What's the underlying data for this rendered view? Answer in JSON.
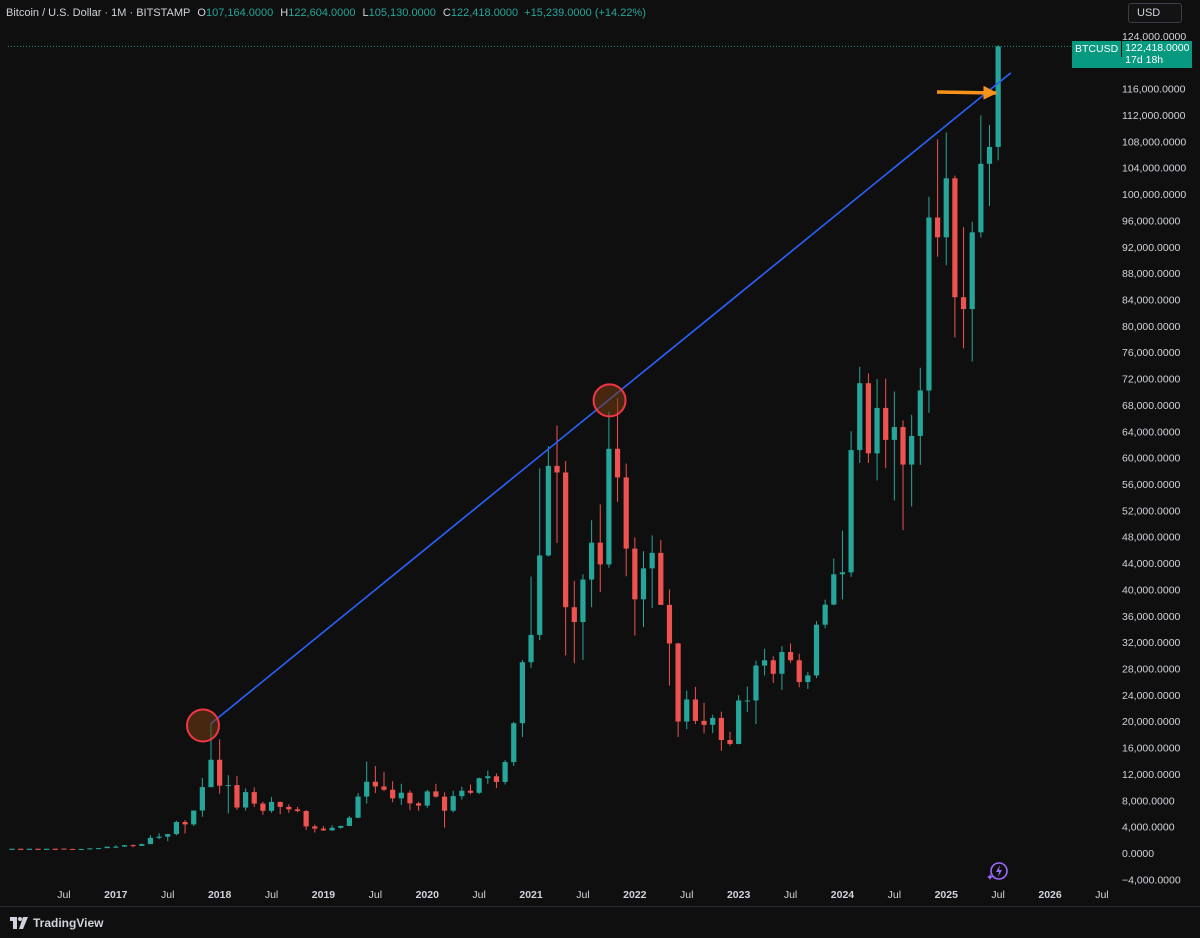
{
  "header": {
    "symbol": "Bitcoin / U.S. Dollar · 1M · BITSTAMP",
    "o_label": "O",
    "o_value": "107,164.0000",
    "h_label": "H",
    "h_value": "122,604.0000",
    "l_label": "L",
    "l_value": "105,130.0000",
    "c_label": "C",
    "c_value": "122,418.0000",
    "change": "+15,239.0000 (+14.22%)"
  },
  "currency_button": "USD",
  "price_tag": {
    "symbol": "BTCUSD",
    "price": "122,418.0000",
    "countdown": "17d 18h"
  },
  "footer": {
    "brand": "TradingView"
  },
  "colors": {
    "up": "#26a69a",
    "down": "#ef5350",
    "trendline": "#2962ff",
    "arrow": "#f7931a",
    "circle": "#f23645"
  },
  "chart_data": {
    "type": "candlestick",
    "title": "Bitcoin / U.S. Dollar · 1M · BITSTAMP",
    "x_ticks": [
      "Jul",
      "2017",
      "Jul",
      "2018",
      "Jul",
      "2019",
      "Jul",
      "2020",
      "Jul",
      "2021",
      "Jul",
      "2022",
      "Jul",
      "2023",
      "Jul",
      "2024",
      "Jul",
      "2025",
      "Jul",
      "2026",
      "Jul"
    ],
    "y_ticks": [
      "124,000.0000",
      "120,000.0000",
      "116,000.0000",
      "112,000.0000",
      "108,000.0000",
      "104,000.0000",
      "100,000.0000",
      "96,000.0000",
      "92,000.0000",
      "88,000.0000",
      "84,000.0000",
      "80,000.0000",
      "76,000.0000",
      "72,000.0000",
      "68,000.0000",
      "64,000.0000",
      "60,000.0000",
      "56,000.0000",
      "52,000.0000",
      "48,000.0000",
      "44,000.0000",
      "40,000.0000",
      "36,000.0000",
      "32,000.0000",
      "28,000.0000",
      "24,000.0000",
      "20,000.0000",
      "16,000.0000",
      "12,000.0000",
      "8,000.0000",
      "4,000.0000",
      "0.0000",
      "−4,000.0000"
    ],
    "ylim": [
      -4500,
      126000
    ],
    "x_range_months": [
      "2016-03",
      "2026-09"
    ],
    "candles": [
      {
        "d": "2016-07",
        "o": 670,
        "h": 700,
        "l": 600,
        "c": 620
      },
      {
        "d": "2016-08",
        "o": 620,
        "h": 630,
        "l": 520,
        "c": 575
      },
      {
        "d": "2016-09",
        "o": 575,
        "h": 620,
        "l": 570,
        "c": 610
      },
      {
        "d": "2016-10",
        "o": 610,
        "h": 740,
        "l": 605,
        "c": 700
      },
      {
        "d": "2016-11",
        "o": 700,
        "h": 750,
        "l": 690,
        "c": 740
      },
      {
        "d": "2016-12",
        "o": 740,
        "h": 970,
        "l": 740,
        "c": 960
      },
      {
        "d": "2017-01",
        "o": 960,
        "h": 1150,
        "l": 750,
        "c": 970
      },
      {
        "d": "2017-02",
        "o": 970,
        "h": 1200,
        "l": 920,
        "c": 1190
      },
      {
        "d": "2017-03",
        "o": 1190,
        "h": 1300,
        "l": 890,
        "c": 1080
      },
      {
        "d": "2017-04",
        "o": 1080,
        "h": 1420,
        "l": 1080,
        "c": 1350
      },
      {
        "d": "2017-05",
        "o": 1350,
        "h": 2700,
        "l": 1350,
        "c": 2300
      },
      {
        "d": "2017-06",
        "o": 2300,
        "h": 3000,
        "l": 2100,
        "c": 2480
      },
      {
        "d": "2017-07",
        "o": 2480,
        "h": 2900,
        "l": 1800,
        "c": 2870
      },
      {
        "d": "2017-08",
        "o": 2870,
        "h": 4900,
        "l": 2700,
        "c": 4700
      },
      {
        "d": "2017-09",
        "o": 4700,
        "h": 5000,
        "l": 2970,
        "c": 4340
      },
      {
        "d": "2017-10",
        "o": 4340,
        "h": 6450,
        "l": 4100,
        "c": 6450
      },
      {
        "d": "2017-11",
        "o": 6450,
        "h": 11400,
        "l": 5500,
        "c": 10000
      },
      {
        "d": "2017-12",
        "o": 10000,
        "h": 19660,
        "l": 10000,
        "c": 14150
      },
      {
        "d": "2018-01",
        "o": 14150,
        "h": 17250,
        "l": 9000,
        "c": 10220
      },
      {
        "d": "2018-02",
        "o": 10220,
        "h": 11800,
        "l": 6000,
        "c": 10300
      },
      {
        "d": "2018-03",
        "o": 10300,
        "h": 11700,
        "l": 6550,
        "c": 6900
      },
      {
        "d": "2018-04",
        "o": 6900,
        "h": 9800,
        "l": 6450,
        "c": 9240
      },
      {
        "d": "2018-05",
        "o": 9240,
        "h": 9960,
        "l": 7000,
        "c": 7500
      },
      {
        "d": "2018-06",
        "o": 7500,
        "h": 7780,
        "l": 5800,
        "c": 6400
      },
      {
        "d": "2018-07",
        "o": 6400,
        "h": 8500,
        "l": 6100,
        "c": 7750
      },
      {
        "d": "2018-08",
        "o": 7750,
        "h": 7800,
        "l": 5900,
        "c": 7000
      },
      {
        "d": "2018-09",
        "o": 7000,
        "h": 7400,
        "l": 6100,
        "c": 6620
      },
      {
        "d": "2018-10",
        "o": 6620,
        "h": 7000,
        "l": 6200,
        "c": 6370
      },
      {
        "d": "2018-11",
        "o": 6370,
        "h": 6550,
        "l": 3500,
        "c": 4040
      },
      {
        "d": "2018-12",
        "o": 4040,
        "h": 4300,
        "l": 3100,
        "c": 3700
      },
      {
        "d": "2019-01",
        "o": 3700,
        "h": 4100,
        "l": 3350,
        "c": 3430
      },
      {
        "d": "2019-02",
        "o": 3430,
        "h": 4200,
        "l": 3380,
        "c": 3830
      },
      {
        "d": "2019-03",
        "o": 3830,
        "h": 4150,
        "l": 3700,
        "c": 4110
      },
      {
        "d": "2019-04",
        "o": 4110,
        "h": 5600,
        "l": 4100,
        "c": 5350
      },
      {
        "d": "2019-05",
        "o": 5350,
        "h": 9100,
        "l": 5300,
        "c": 8570
      },
      {
        "d": "2019-06",
        "o": 8570,
        "h": 13880,
        "l": 7500,
        "c": 10820
      },
      {
        "d": "2019-07",
        "o": 10820,
        "h": 13200,
        "l": 9100,
        "c": 10100
      },
      {
        "d": "2019-08",
        "o": 10100,
        "h": 12300,
        "l": 9400,
        "c": 9600
      },
      {
        "d": "2019-09",
        "o": 9600,
        "h": 10900,
        "l": 7700,
        "c": 8300
      },
      {
        "d": "2019-10",
        "o": 8300,
        "h": 10500,
        "l": 7300,
        "c": 9150
      },
      {
        "d": "2019-11",
        "o": 9150,
        "h": 9500,
        "l": 6500,
        "c": 7540
      },
      {
        "d": "2019-12",
        "o": 7540,
        "h": 7750,
        "l": 6400,
        "c": 7190
      },
      {
        "d": "2020-01",
        "o": 7190,
        "h": 9600,
        "l": 6850,
        "c": 9350
      },
      {
        "d": "2020-02",
        "o": 9350,
        "h": 10500,
        "l": 8400,
        "c": 8550
      },
      {
        "d": "2020-03",
        "o": 8550,
        "h": 9200,
        "l": 3850,
        "c": 6420
      },
      {
        "d": "2020-04",
        "o": 6420,
        "h": 9450,
        "l": 6150,
        "c": 8630
      },
      {
        "d": "2020-05",
        "o": 8630,
        "h": 10080,
        "l": 8100,
        "c": 9450
      },
      {
        "d": "2020-06",
        "o": 9450,
        "h": 10400,
        "l": 8900,
        "c": 9140
      },
      {
        "d": "2020-07",
        "o": 9140,
        "h": 11450,
        "l": 8950,
        "c": 11350
      },
      {
        "d": "2020-08",
        "o": 11350,
        "h": 12470,
        "l": 10500,
        "c": 11650
      },
      {
        "d": "2020-09",
        "o": 11650,
        "h": 12070,
        "l": 9850,
        "c": 10780
      },
      {
        "d": "2020-10",
        "o": 10780,
        "h": 14100,
        "l": 10400,
        "c": 13800
      },
      {
        "d": "2020-11",
        "o": 13800,
        "h": 19900,
        "l": 13200,
        "c": 19700
      },
      {
        "d": "2020-12",
        "o": 19700,
        "h": 29300,
        "l": 17600,
        "c": 28950
      },
      {
        "d": "2021-01",
        "o": 28950,
        "h": 41950,
        "l": 28100,
        "c": 33100
      },
      {
        "d": "2021-02",
        "o": 33100,
        "h": 58350,
        "l": 32300,
        "c": 45150
      },
      {
        "d": "2021-03",
        "o": 45150,
        "h": 61750,
        "l": 45000,
        "c": 58750
      },
      {
        "d": "2021-04",
        "o": 58750,
        "h": 64900,
        "l": 47050,
        "c": 57750
      },
      {
        "d": "2021-05",
        "o": 57750,
        "h": 59500,
        "l": 30000,
        "c": 37300
      },
      {
        "d": "2021-06",
        "o": 37300,
        "h": 41300,
        "l": 28800,
        "c": 35050
      },
      {
        "d": "2021-07",
        "o": 35050,
        "h": 42300,
        "l": 29300,
        "c": 41500
      },
      {
        "d": "2021-08",
        "o": 41500,
        "h": 50500,
        "l": 37300,
        "c": 47100
      },
      {
        "d": "2021-09",
        "o": 47100,
        "h": 52900,
        "l": 39600,
        "c": 43800
      },
      {
        "d": "2021-10",
        "o": 43800,
        "h": 67000,
        "l": 43300,
        "c": 61350
      },
      {
        "d": "2021-11",
        "o": 61350,
        "h": 69000,
        "l": 53300,
        "c": 57000
      },
      {
        "d": "2021-12",
        "o": 57000,
        "h": 59100,
        "l": 42000,
        "c": 46200
      },
      {
        "d": "2022-01",
        "o": 46200,
        "h": 47900,
        "l": 33000,
        "c": 38500
      },
      {
        "d": "2022-02",
        "o": 38500,
        "h": 45800,
        "l": 34300,
        "c": 43200
      },
      {
        "d": "2022-03",
        "o": 43200,
        "h": 48200,
        "l": 37200,
        "c": 45550
      },
      {
        "d": "2022-04",
        "o": 45550,
        "h": 47500,
        "l": 37700,
        "c": 37650
      },
      {
        "d": "2022-05",
        "o": 37650,
        "h": 40000,
        "l": 25400,
        "c": 31800
      },
      {
        "d": "2022-06",
        "o": 31800,
        "h": 31900,
        "l": 17600,
        "c": 19950
      },
      {
        "d": "2022-07",
        "o": 19950,
        "h": 24650,
        "l": 18800,
        "c": 23300
      },
      {
        "d": "2022-08",
        "o": 23300,
        "h": 25200,
        "l": 19550,
        "c": 20050
      },
      {
        "d": "2022-09",
        "o": 20050,
        "h": 22800,
        "l": 18150,
        "c": 19450
      },
      {
        "d": "2022-10",
        "o": 19450,
        "h": 21000,
        "l": 18200,
        "c": 20500
      },
      {
        "d": "2022-11",
        "o": 20500,
        "h": 21450,
        "l": 15500,
        "c": 17150
      },
      {
        "d": "2022-12",
        "o": 17150,
        "h": 18400,
        "l": 16300,
        "c": 16550
      },
      {
        "d": "2023-01",
        "o": 16550,
        "h": 23950,
        "l": 16500,
        "c": 23150
      },
      {
        "d": "2023-02",
        "o": 23150,
        "h": 25250,
        "l": 21400,
        "c": 23150
      },
      {
        "d": "2023-03",
        "o": 23150,
        "h": 29200,
        "l": 19550,
        "c": 28450
      },
      {
        "d": "2023-04",
        "o": 28450,
        "h": 31000,
        "l": 26950,
        "c": 29250
      },
      {
        "d": "2023-05",
        "o": 29250,
        "h": 29850,
        "l": 25800,
        "c": 27200
      },
      {
        "d": "2023-06",
        "o": 27200,
        "h": 31400,
        "l": 24750,
        "c": 30500
      },
      {
        "d": "2023-07",
        "o": 30500,
        "h": 31800,
        "l": 28850,
        "c": 29250
      },
      {
        "d": "2023-08",
        "o": 29250,
        "h": 30250,
        "l": 25150,
        "c": 25950
      },
      {
        "d": "2023-09",
        "o": 25950,
        "h": 27500,
        "l": 24900,
        "c": 26950
      },
      {
        "d": "2023-10",
        "o": 26950,
        "h": 35200,
        "l": 26550,
        "c": 34650
      },
      {
        "d": "2023-11",
        "o": 34650,
        "h": 38450,
        "l": 34100,
        "c": 37700
      },
      {
        "d": "2023-12",
        "o": 37700,
        "h": 44700,
        "l": 37600,
        "c": 42300
      },
      {
        "d": "2024-01",
        "o": 42300,
        "h": 48900,
        "l": 38500,
        "c": 42600
      },
      {
        "d": "2024-02",
        "o": 42600,
        "h": 64000,
        "l": 41900,
        "c": 61150
      },
      {
        "d": "2024-03",
        "o": 61150,
        "h": 73800,
        "l": 59200,
        "c": 71300
      },
      {
        "d": "2024-04",
        "o": 71300,
        "h": 72800,
        "l": 59200,
        "c": 60650
      },
      {
        "d": "2024-05",
        "o": 60650,
        "h": 71950,
        "l": 56550,
        "c": 67550
      },
      {
        "d": "2024-06",
        "o": 67550,
        "h": 72000,
        "l": 58400,
        "c": 62700
      },
      {
        "d": "2024-07",
        "o": 62700,
        "h": 70050,
        "l": 53500,
        "c": 64650
      },
      {
        "d": "2024-08",
        "o": 64650,
        "h": 65650,
        "l": 49000,
        "c": 58950
      },
      {
        "d": "2024-09",
        "o": 58950,
        "h": 66500,
        "l": 52600,
        "c": 63300
      },
      {
        "d": "2024-10",
        "o": 63300,
        "h": 73650,
        "l": 58900,
        "c": 70200
      },
      {
        "d": "2024-11",
        "o": 70200,
        "h": 99600,
        "l": 66800,
        "c": 96450
      },
      {
        "d": "2024-12",
        "o": 96450,
        "h": 108300,
        "l": 90500,
        "c": 93450
      },
      {
        "d": "2025-01",
        "o": 93450,
        "h": 109350,
        "l": 89200,
        "c": 102400
      },
      {
        "d": "2025-02",
        "o": 102400,
        "h": 102800,
        "l": 78250,
        "c": 84350
      },
      {
        "d": "2025-03",
        "o": 84350,
        "h": 95000,
        "l": 76600,
        "c": 82550
      },
      {
        "d": "2025-04",
        "o": 82550,
        "h": 95800,
        "l": 74600,
        "c": 94200
      },
      {
        "d": "2025-05",
        "o": 94200,
        "h": 111950,
        "l": 93400,
        "c": 104600
      },
      {
        "d": "2025-06",
        "o": 104600,
        "h": 110500,
        "l": 98200,
        "c": 107150
      },
      {
        "d": "2025-07",
        "o": 107164,
        "h": 122604,
        "l": 105130,
        "c": 122418
      }
    ],
    "trendline": {
      "from": {
        "d": "2017-12",
        "price": 19660
      },
      "to": {
        "d": "2025-08",
        "price": 118400
      }
    },
    "highlight_circles": [
      {
        "d": "2017-12",
        "price": 19660
      },
      {
        "d": "2021-11",
        "price": 69000
      }
    ],
    "last_price_line": 122418
  }
}
